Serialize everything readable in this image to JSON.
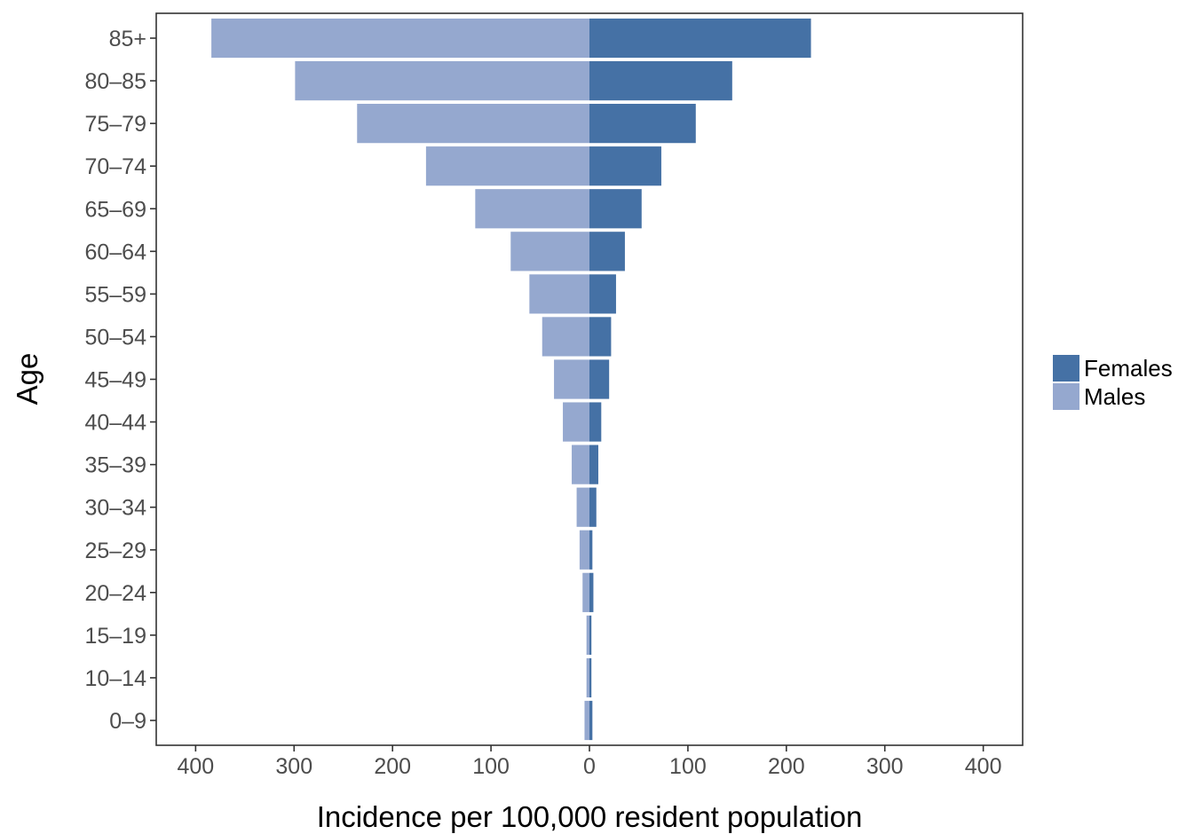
{
  "chart_data": {
    "type": "bar",
    "orientation": "horizontal",
    "layout": "population-pyramid",
    "categories": [
      "0–9",
      "10–14",
      "15–19",
      "20–24",
      "25–29",
      "30–34",
      "35–39",
      "40–44",
      "45–49",
      "50–54",
      "55–59",
      "60–64",
      "65–69",
      "70–74",
      "75–79",
      "80–85",
      "85+"
    ],
    "series": [
      {
        "name": "Females",
        "color": "#4571a5",
        "side": "right",
        "values": [
          3,
          2,
          2,
          4,
          3,
          7,
          9,
          12,
          20,
          22,
          27,
          36,
          53,
          73,
          108,
          145,
          225
        ]
      },
      {
        "name": "Males",
        "color": "#95a8cf",
        "side": "left",
        "values": [
          5,
          3,
          3,
          7,
          10,
          13,
          18,
          27,
          36,
          48,
          61,
          80,
          116,
          166,
          236,
          299,
          384
        ]
      }
    ],
    "xlabel": "Incidence per 100,000 resident population",
    "ylabel": "Age",
    "xlim": [
      -440,
      440
    ],
    "xticks": [
      -400,
      -300,
      -200,
      -100,
      0,
      100,
      200,
      300,
      400
    ],
    "xtick_labels": [
      "400",
      "300",
      "200",
      "100",
      "0",
      "100",
      "200",
      "300",
      "400"
    ],
    "grid": false,
    "legend": {
      "position": "right",
      "entries": [
        "Females",
        "Males"
      ]
    }
  }
}
